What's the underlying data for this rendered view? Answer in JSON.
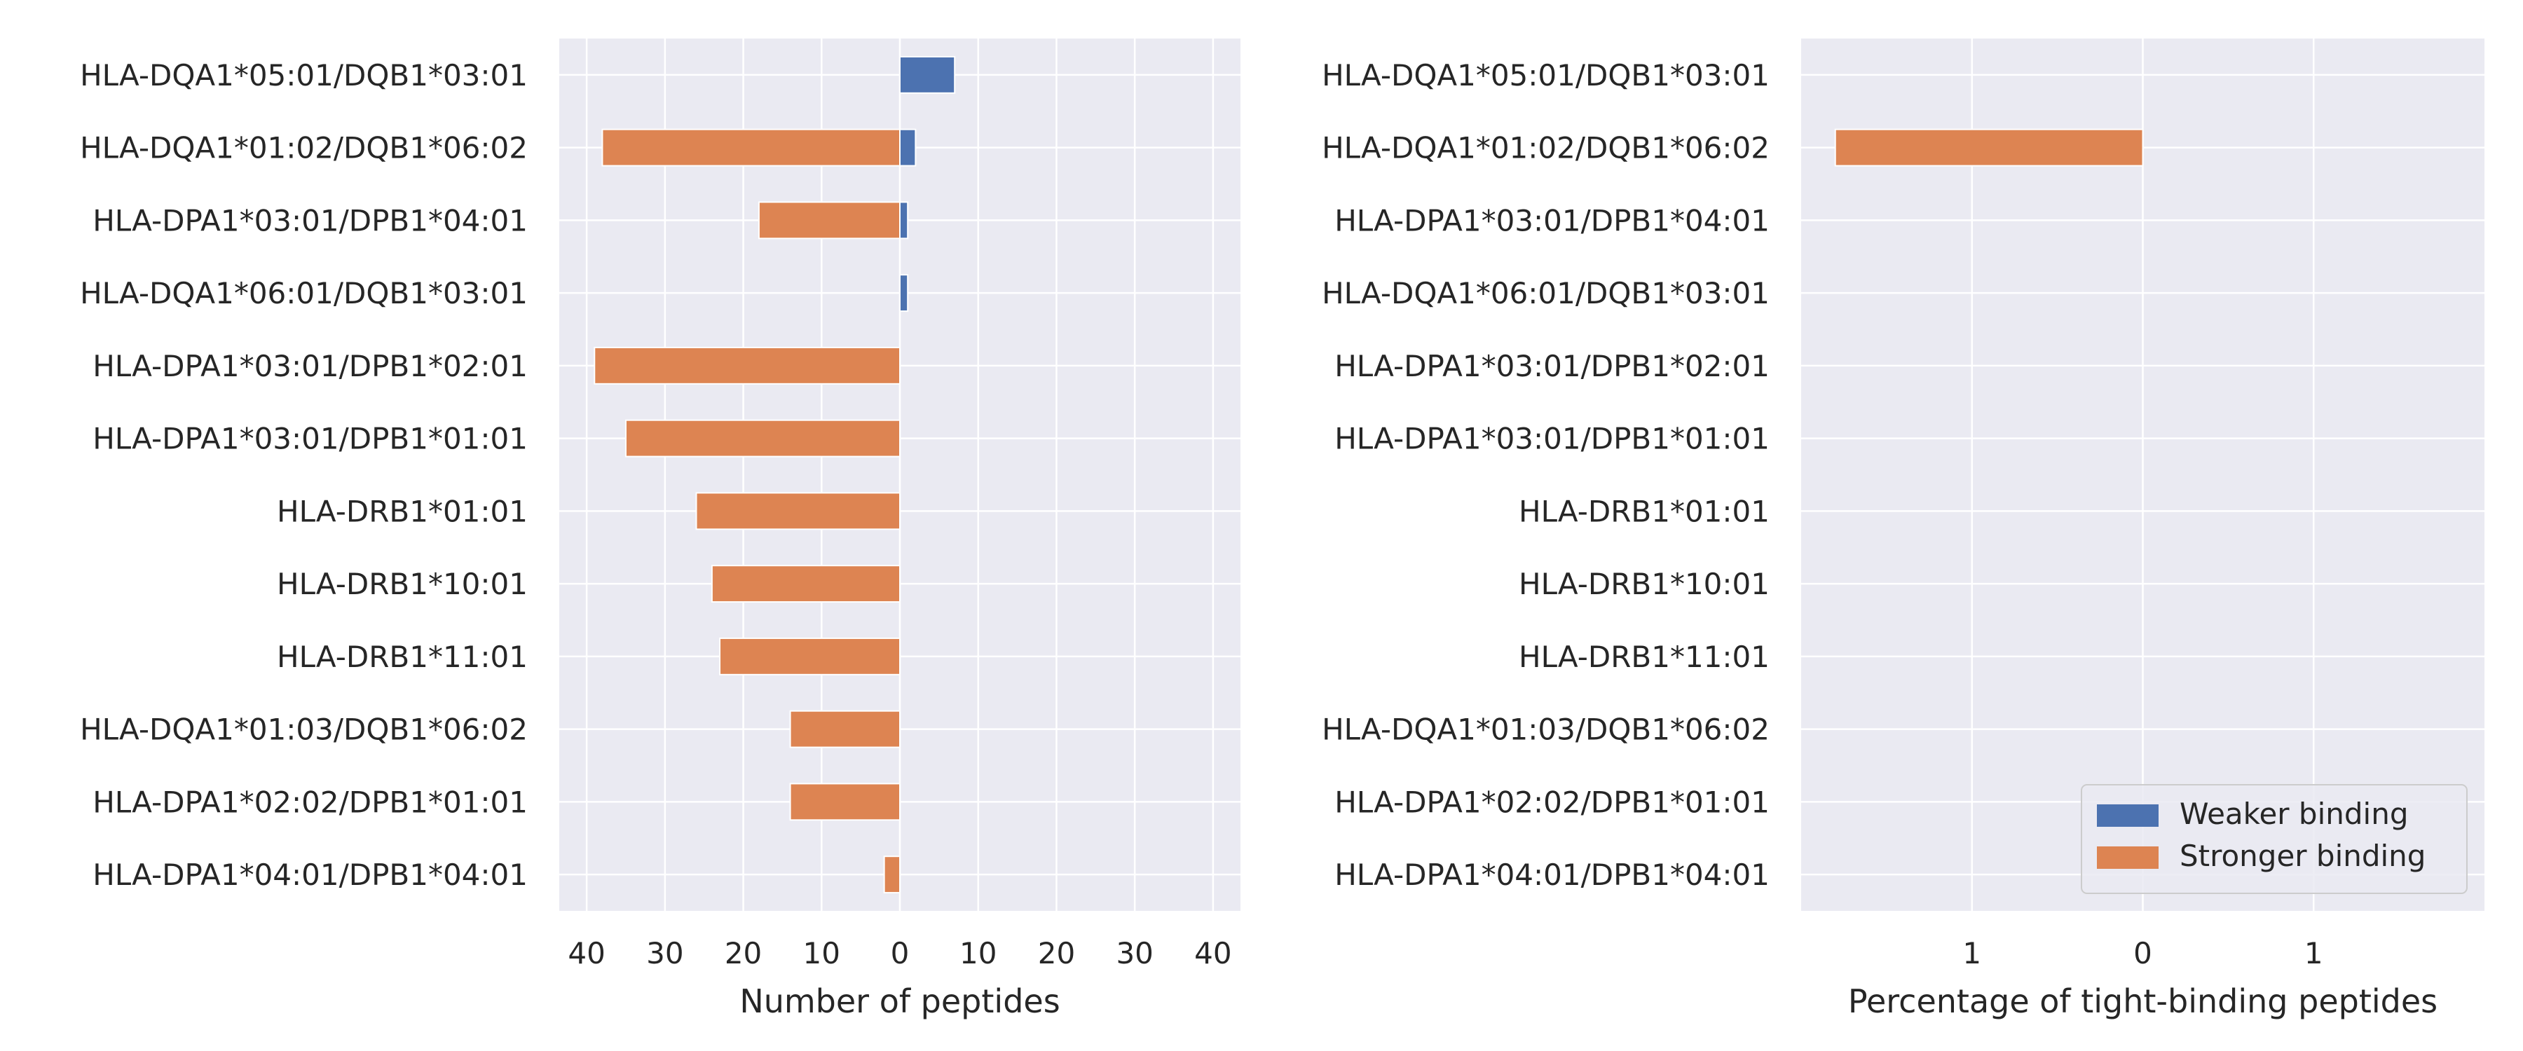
{
  "colors": {
    "background": "#eaeaf2",
    "grid": "#ffffff",
    "weaker": "#4c72b0",
    "stronger": "#dd8452",
    "text": "#262626"
  },
  "chart_data": [
    {
      "type": "bar",
      "orientation": "horizontal-diverging",
      "xlabel": "Number of peptides",
      "ylabel": "",
      "title": "",
      "xlim": [
        -43.5,
        43.5
      ],
      "xticks": [
        -40,
        -30,
        -20,
        -10,
        0,
        10,
        20,
        30,
        40
      ],
      "xtick_labels": [
        "40",
        "30",
        "20",
        "10",
        "0",
        "10",
        "20",
        "30",
        "40"
      ],
      "grid": true,
      "categories": [
        "HLA-DQA1*05:01/DQB1*03:01",
        "HLA-DQA1*01:02/DQB1*06:02",
        "HLA-DPA1*03:01/DPB1*04:01",
        "HLA-DQA1*06:01/DQB1*03:01",
        "HLA-DPA1*03:01/DPB1*02:01",
        "HLA-DPA1*03:01/DPB1*01:01",
        "HLA-DRB1*01:01",
        "HLA-DRB1*10:01",
        "HLA-DRB1*11:01",
        "HLA-DQA1*01:03/DQB1*06:02",
        "HLA-DPA1*02:02/DPB1*01:01",
        "HLA-DPA1*04:01/DPB1*04:01"
      ],
      "series": [
        {
          "name": "Weaker binding",
          "values": [
            7,
            2,
            1,
            1,
            0,
            0,
            0,
            0,
            0,
            0,
            0,
            0
          ]
        },
        {
          "name": "Stronger binding",
          "values": [
            0,
            38,
            18,
            0,
            39,
            35,
            26,
            24,
            23,
            14,
            14,
            2
          ]
        }
      ]
    },
    {
      "type": "bar",
      "orientation": "horizontal-diverging",
      "xlabel": "Percentage of tight-binding peptides",
      "ylabel": "",
      "title": "",
      "xlim": [
        -2,
        2
      ],
      "xticks": [
        -1,
        0,
        1
      ],
      "xtick_labels": [
        "1",
        "0",
        "1"
      ],
      "grid": true,
      "legend_position": "bottom-right",
      "categories": [
        "HLA-DQA1*05:01/DQB1*03:01",
        "HLA-DQA1*01:02/DQB1*06:02",
        "HLA-DPA1*03:01/DPB1*04:01",
        "HLA-DQA1*06:01/DQB1*03:01",
        "HLA-DPA1*03:01/DPB1*02:01",
        "HLA-DPA1*03:01/DPB1*01:01",
        "HLA-DRB1*01:01",
        "HLA-DRB1*10:01",
        "HLA-DRB1*11:01",
        "HLA-DQA1*01:03/DQB1*06:02",
        "HLA-DPA1*02:02/DPB1*01:01",
        "HLA-DPA1*04:01/DPB1*04:01"
      ],
      "series": [
        {
          "name": "Weaker binding",
          "values": [
            0,
            0,
            0,
            0,
            0,
            0,
            0,
            0,
            0,
            0,
            0,
            0
          ]
        },
        {
          "name": "Stronger binding",
          "values": [
            0,
            1.8,
            0,
            0,
            0,
            0,
            0,
            0,
            0,
            0,
            0,
            0
          ]
        }
      ]
    }
  ]
}
